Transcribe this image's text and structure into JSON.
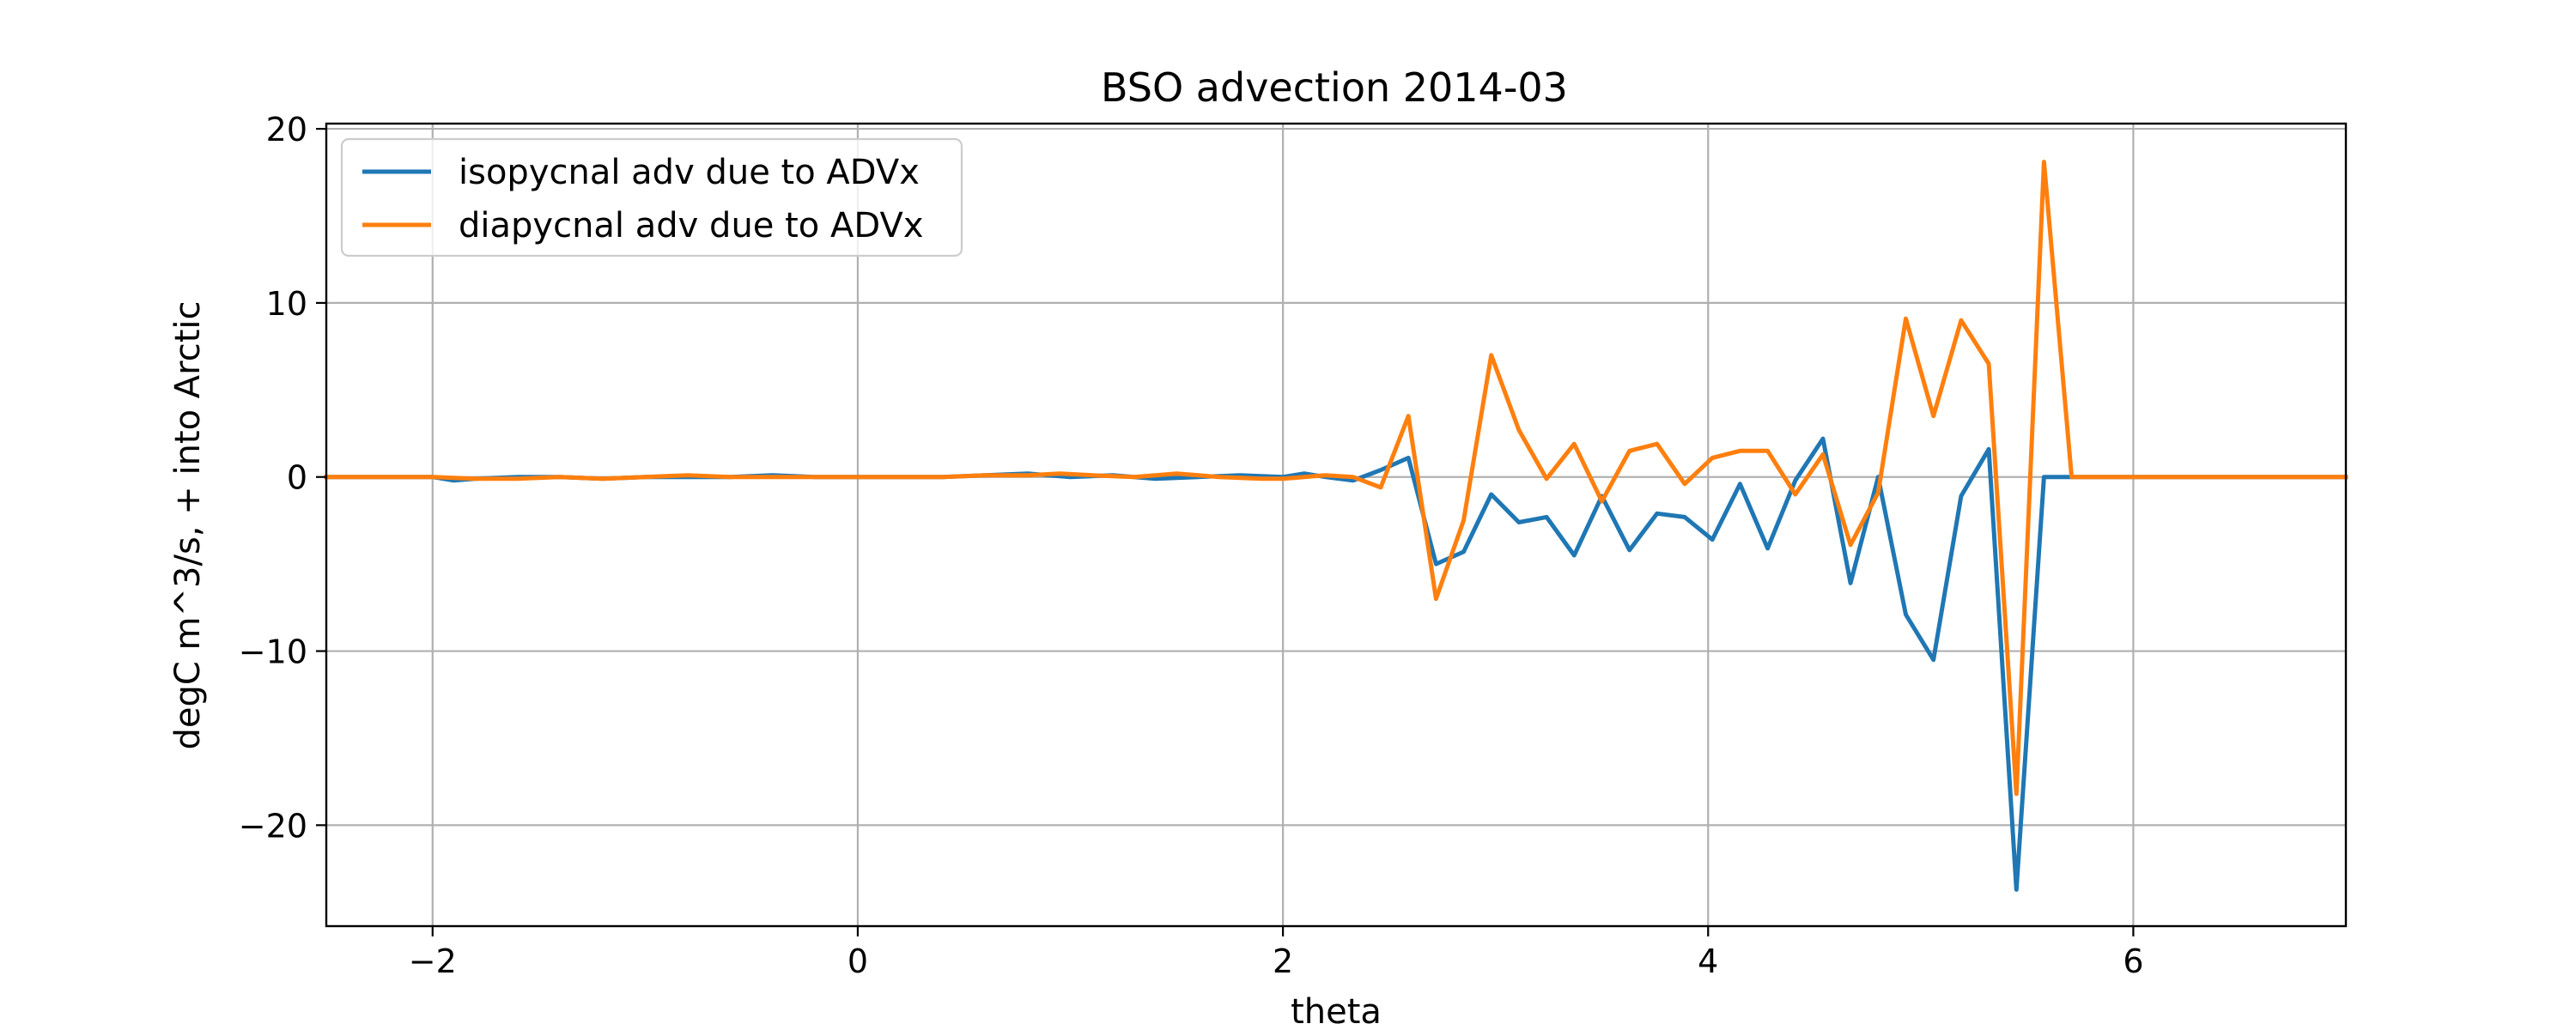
{
  "chart_data": {
    "type": "line",
    "title": "BSO advection 2014-03",
    "xlabel": "theta",
    "ylabel": "degC m^3/s, + into Arctic",
    "xlim": [
      -2.5,
      7.0
    ],
    "ylim": [
      -25.8,
      20.3
    ],
    "xticks": [
      -2,
      0,
      2,
      4,
      6
    ],
    "yticks": [
      -20,
      -10,
      0,
      10,
      20
    ],
    "grid": true,
    "legend_position": "top-left",
    "series": [
      {
        "name": "isopycnal adv due to ADVx",
        "color": "#1f77b4",
        "x": [
          -2.5,
          -2.0,
          -1.9,
          -1.8,
          -1.6,
          -1.4,
          -1.2,
          -1.0,
          -0.8,
          -0.6,
          -0.4,
          -0.2,
          0.0,
          0.2,
          0.4,
          0.6,
          0.8,
          1.0,
          1.2,
          1.4,
          1.6,
          1.8,
          2.0,
          2.1,
          2.2,
          2.33,
          2.46,
          2.59,
          2.72,
          2.85,
          2.98,
          3.11,
          3.24,
          3.37,
          3.5,
          3.63,
          3.76,
          3.89,
          4.02,
          4.15,
          4.28,
          4.41,
          4.54,
          4.67,
          4.8,
          4.93,
          5.06,
          5.19,
          5.32,
          5.45,
          5.58,
          5.71,
          5.84,
          7.0
        ],
        "y": [
          0.0,
          0.0,
          -0.2,
          -0.1,
          0.0,
          0.0,
          -0.1,
          0.0,
          0.0,
          0.0,
          0.1,
          0.0,
          0.0,
          0.0,
          0.0,
          0.1,
          0.2,
          0.0,
          0.1,
          -0.1,
          0.0,
          0.1,
          0.0,
          0.2,
          0.0,
          -0.2,
          0.4,
          1.1,
          -5.0,
          -4.3,
          -1.0,
          -2.6,
          -2.3,
          -4.5,
          -1.1,
          -4.2,
          -2.1,
          -2.3,
          -3.6,
          -0.4,
          -4.1,
          -0.2,
          2.2,
          -6.1,
          0.0,
          -7.9,
          -10.5,
          -1.1,
          1.6,
          -23.7,
          0.0,
          0.0,
          0.0,
          0.0
        ]
      },
      {
        "name": "diapycnal adv due to ADVx",
        "color": "#ff7f0e",
        "x": [
          -2.5,
          -2.0,
          -1.8,
          -1.6,
          -1.4,
          -1.2,
          -1.0,
          -0.8,
          -0.6,
          -0.4,
          -0.2,
          0.0,
          0.2,
          0.4,
          0.6,
          0.8,
          0.95,
          1.1,
          1.3,
          1.5,
          1.7,
          1.9,
          2.0,
          2.1,
          2.2,
          2.33,
          2.46,
          2.59,
          2.72,
          2.85,
          2.98,
          3.11,
          3.24,
          3.37,
          3.5,
          3.63,
          3.76,
          3.89,
          4.02,
          4.15,
          4.28,
          4.41,
          4.54,
          4.67,
          4.8,
          4.93,
          5.06,
          5.19,
          5.32,
          5.45,
          5.58,
          5.71,
          5.84,
          7.0
        ],
        "y": [
          0.0,
          0.0,
          -0.1,
          -0.1,
          0.0,
          -0.1,
          0.0,
          0.1,
          0.0,
          0.0,
          0.0,
          0.0,
          0.0,
          0.0,
          0.1,
          0.1,
          0.2,
          0.1,
          0.0,
          0.2,
          0.0,
          -0.1,
          -0.1,
          0.0,
          0.1,
          0.0,
          -0.6,
          3.5,
          -7.0,
          -2.5,
          7.0,
          2.7,
          -0.1,
          1.9,
          -1.4,
          1.5,
          1.9,
          -0.4,
          1.1,
          1.5,
          1.5,
          -1.0,
          1.3,
          -3.9,
          -0.9,
          9.1,
          3.5,
          9.0,
          6.5,
          -18.2,
          18.1,
          0.0,
          0.0,
          0.0
        ]
      }
    ]
  }
}
